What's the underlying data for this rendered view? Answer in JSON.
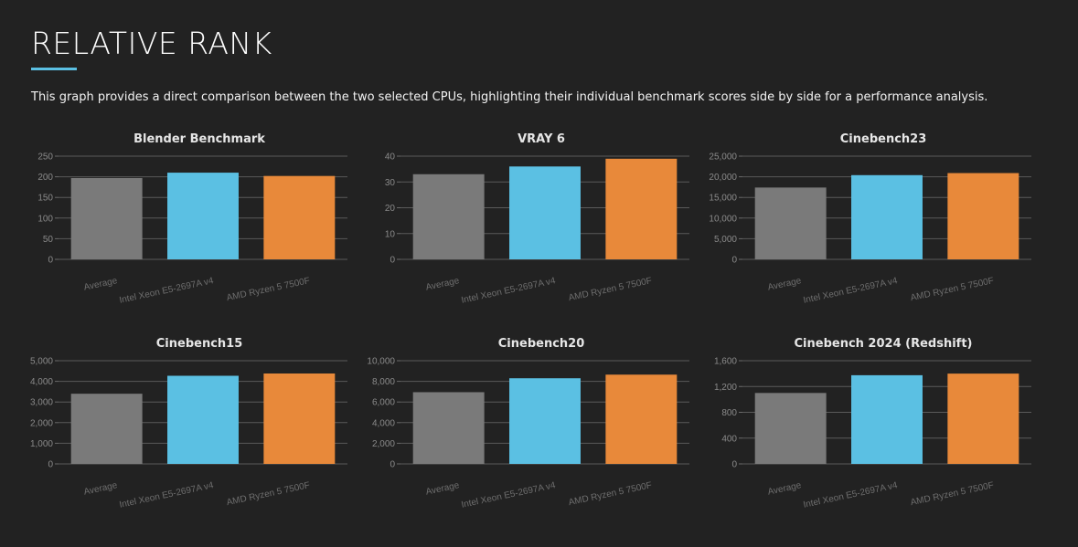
{
  "header": {
    "title": "RELATIVE RANK",
    "description": "This graph provides a direct comparison between the two selected CPUs, highlighting their individual benchmark scores side by side for a performance analysis."
  },
  "colors": {
    "accent": "#5bc0e3",
    "average": "#7a7a7a",
    "cpu1": "#5bc0e3",
    "cpu2": "#e8893a"
  },
  "chart_data": [
    {
      "type": "bar",
      "title": "Blender Benchmark",
      "categories": [
        "Average",
        "Intel Xeon E5-2697A v4",
        "AMD Ryzen 5 7500F"
      ],
      "values": [
        197,
        210,
        202
      ],
      "ylim": [
        0,
        250
      ],
      "yticks": [
        0,
        50,
        100,
        150,
        200,
        250
      ],
      "ytick_labels": [
        "0",
        "50",
        "100",
        "150",
        "200",
        "250"
      ]
    },
    {
      "type": "bar",
      "title": "VRAY 6",
      "categories": [
        "Average",
        "Intel Xeon E5-2697A v4",
        "AMD Ryzen 5 7500F"
      ],
      "values": [
        33,
        36,
        39
      ],
      "ylim": [
        0,
        40
      ],
      "yticks": [
        0,
        10,
        20,
        30,
        40
      ],
      "ytick_labels": [
        "0",
        "10",
        "20",
        "30",
        "40"
      ]
    },
    {
      "type": "bar",
      "title": "Cinebench23",
      "categories": [
        "Average",
        "Intel Xeon E5-2697A v4",
        "AMD Ryzen 5 7500F"
      ],
      "values": [
        17400,
        20400,
        20900
      ],
      "ylim": [
        0,
        25000
      ],
      "yticks": [
        0,
        5000,
        10000,
        15000,
        20000,
        25000
      ],
      "ytick_labels": [
        "0",
        "5,000",
        "10,000",
        "15,000",
        "20,000",
        "25,000"
      ]
    },
    {
      "type": "bar",
      "title": "Cinebench15",
      "categories": [
        "Average",
        "Intel Xeon E5-2697A v4",
        "AMD Ryzen 5 7500F"
      ],
      "values": [
        3400,
        4270,
        4380
      ],
      "ylim": [
        0,
        5000
      ],
      "yticks": [
        0,
        1000,
        2000,
        3000,
        4000,
        5000
      ],
      "ytick_labels": [
        "0",
        "1,000",
        "2,000",
        "3,000",
        "4,000",
        "5,000"
      ]
    },
    {
      "type": "bar",
      "title": "Cinebench20",
      "categories": [
        "Average",
        "Intel Xeon E5-2697A v4",
        "AMD Ryzen 5 7500F"
      ],
      "values": [
        6950,
        8300,
        8650
      ],
      "ylim": [
        0,
        10000
      ],
      "yticks": [
        0,
        2000,
        4000,
        6000,
        8000,
        10000
      ],
      "ytick_labels": [
        "0",
        "2,000",
        "4,000",
        "6,000",
        "8,000",
        "10,000"
      ]
    },
    {
      "type": "bar",
      "title": "Cinebench 2024 (Redshift)",
      "categories": [
        "Average",
        "Intel Xeon E5-2697A v4",
        "AMD Ryzen 5 7500F"
      ],
      "values": [
        1100,
        1375,
        1400
      ],
      "ylim": [
        0,
        1600
      ],
      "yticks": [
        0,
        400,
        800,
        1200,
        1600
      ],
      "ytick_labels": [
        "0",
        "400",
        "800",
        "1,200",
        "1,600"
      ]
    }
  ]
}
